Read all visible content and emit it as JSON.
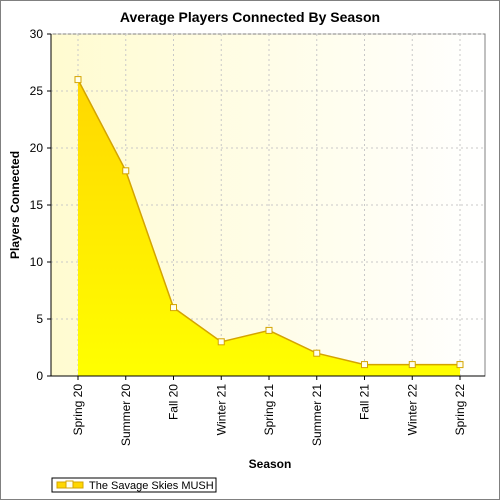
{
  "chart_data": {
    "type": "area",
    "title": "Average Players Connected By Season",
    "xlabel": "Season",
    "ylabel": "Players Connected",
    "categories": [
      "Spring 20",
      "Summer 20",
      "Fall 20",
      "Winter 21",
      "Spring 21",
      "Summer 21",
      "Fall 21",
      "Winter 22",
      "Spring 22"
    ],
    "series": [
      {
        "name": "The Savage Skies MUSH",
        "values": [
          26,
          18,
          6,
          3,
          4,
          2,
          1,
          1,
          1
        ]
      }
    ],
    "ylim": [
      0,
      30
    ],
    "yticks": [
      "0",
      "5",
      "10",
      "15",
      "20",
      "25",
      "30"
    ],
    "grid": true,
    "legend_position": "bottom-left",
    "colors": {
      "fill_top": "#ffd700",
      "fill_bottom": "#ffff00",
      "line": "#d4a400",
      "marker_fill": "#ffffee",
      "plot_bg_left": "#fffbd0",
      "plot_bg_right": "#ffffff",
      "grid": "#c8c8c8"
    }
  }
}
